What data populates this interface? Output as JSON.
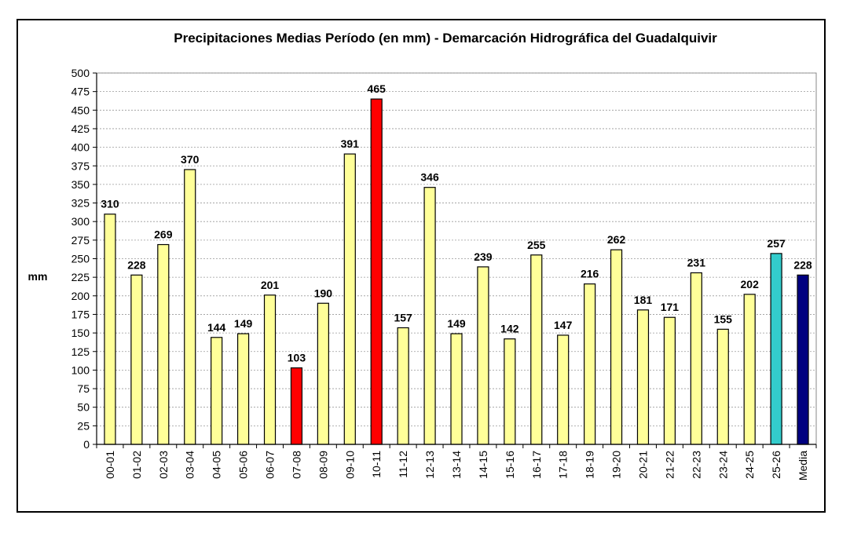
{
  "chart_data": {
    "type": "bar",
    "title": "Precipitaciones Medias Período (en mm) - Demarcación Hidrográfica del Guadalquivir",
    "xlabel": "",
    "ylabel": "mm",
    "ylim": [
      0,
      500
    ],
    "ytick_step": 25,
    "grid": true,
    "legend": "none",
    "categories": [
      "00-01",
      "01-02",
      "02-03",
      "03-04",
      "04-05",
      "05-06",
      "06-07",
      "07-08",
      "08-09",
      "09-10",
      "10-11",
      "11-12",
      "12-13",
      "13-14",
      "14-15",
      "15-16",
      "16-17",
      "17-18",
      "18-19",
      "19-20",
      "20-21",
      "21-22",
      "22-23",
      "23-24",
      "24-25",
      "25-26",
      "Media"
    ],
    "values": [
      310,
      228,
      269,
      370,
      144,
      149,
      201,
      103,
      190,
      391,
      465,
      157,
      346,
      149,
      239,
      142,
      255,
      147,
      216,
      262,
      181,
      171,
      231,
      155,
      202,
      257,
      228
    ],
    "bar_colors": [
      "#FFFF99",
      "#FFFF99",
      "#FFFF99",
      "#FFFF99",
      "#FFFF99",
      "#FFFF99",
      "#FFFF99",
      "#FF0000",
      "#FFFF99",
      "#FFFF99",
      "#FF0000",
      "#FFFF99",
      "#FFFF99",
      "#FFFF99",
      "#FFFF99",
      "#FFFF99",
      "#FFFF99",
      "#FFFF99",
      "#FFFF99",
      "#FFFF99",
      "#FFFF99",
      "#FFFF99",
      "#FFFF99",
      "#FFFF99",
      "#FFFF99",
      "#33CCCC",
      "#000080"
    ]
  }
}
